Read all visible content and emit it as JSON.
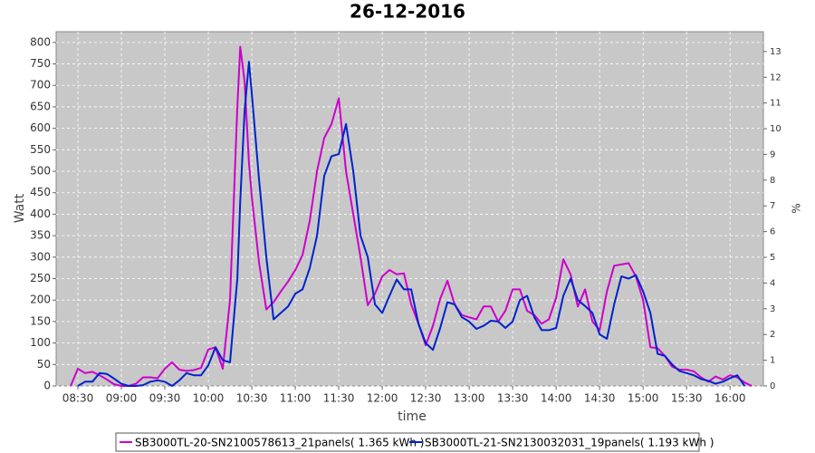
{
  "chart_data": {
    "type": "line",
    "title": "26-12-2016",
    "x_label": "time",
    "y_label": "Watt",
    "y2_label": "%",
    "x": [
      505,
      510,
      515,
      520,
      525,
      530,
      535,
      540,
      545,
      550,
      555,
      560,
      565,
      570,
      575,
      580,
      585,
      590,
      595,
      600,
      605,
      610,
      615,
      620,
      622,
      625,
      628,
      630,
      635,
      640,
      645,
      650,
      655,
      660,
      665,
      670,
      675,
      680,
      685,
      690,
      695,
      700,
      705,
      710,
      715,
      720,
      725,
      730,
      735,
      740,
      745,
      750,
      755,
      760,
      765,
      770,
      775,
      780,
      785,
      790,
      795,
      800,
      805,
      810,
      815,
      820,
      825,
      830,
      835,
      840,
      845,
      850,
      855,
      860,
      865,
      870,
      875,
      880,
      885,
      890,
      895,
      900,
      905,
      910,
      915,
      920,
      925,
      930,
      935,
      940,
      945,
      950,
      955,
      960,
      965,
      970,
      975
    ],
    "series": [
      {
        "name": "SB3000TL-20-SN2100578613_21panels( 1.365 kWh )",
        "color": "#cc00cc",
        "values": [
          0,
          40,
          30,
          33,
          25,
          15,
          4,
          0,
          0,
          5,
          20,
          20,
          18,
          40,
          55,
          38,
          35,
          37,
          42,
          85,
          90,
          40,
          200,
          650,
          790,
          710,
          520,
          440,
          287,
          178,
          195,
          220,
          243,
          270,
          305,
          385,
          500,
          578,
          610,
          670,
          500,
          400,
          300,
          188,
          215,
          255,
          270,
          260,
          262,
          190,
          145,
          95,
          140,
          203,
          245,
          190,
          165,
          160,
          155,
          185,
          185,
          150,
          175,
          225,
          225,
          175,
          165,
          145,
          155,
          205,
          295,
          260,
          185,
          225,
          150,
          130,
          220,
          280,
          283,
          286,
          255,
          200,
          90,
          88,
          70,
          45,
          38,
          38,
          34,
          20,
          10,
          22,
          15,
          25,
          20,
          8,
          0
        ]
      },
      {
        "name": "SB3000TL-21-SN2130032031_19panels( 1.193 kWh )",
        "color": "#0022cc",
        "values": [
          null,
          0,
          10,
          10,
          30,
          28,
          17,
          5,
          0,
          0,
          2,
          10,
          13,
          10,
          0,
          13,
          30,
          25,
          25,
          48,
          90,
          60,
          55,
          250,
          430,
          640,
          755,
          680,
          480,
          300,
          155,
          170,
          185,
          215,
          225,
          275,
          350,
          490,
          535,
          540,
          610,
          500,
          350,
          300,
          190,
          170,
          210,
          248,
          225,
          225,
          145,
          100,
          84,
          135,
          195,
          190,
          160,
          150,
          133,
          140,
          152,
          150,
          135,
          150,
          200,
          210,
          160,
          130,
          130,
          135,
          210,
          250,
          200,
          186,
          170,
          120,
          110,
          190,
          255,
          250,
          258,
          220,
          170,
          75,
          70,
          50,
          35,
          30,
          25,
          16,
          12,
          5,
          10,
          18,
          25,
          0,
          null
        ]
      }
    ],
    "xlim": [
      495,
      983
    ],
    "xticks": [
      {
        "value": 510,
        "label": "08:30"
      },
      {
        "value": 540,
        "label": "09:00"
      },
      {
        "value": 570,
        "label": "09:30"
      },
      {
        "value": 600,
        "label": "10:00"
      },
      {
        "value": 630,
        "label": "10:30"
      },
      {
        "value": 660,
        "label": "11:00"
      },
      {
        "value": 690,
        "label": "11:30"
      },
      {
        "value": 720,
        "label": "12:00"
      },
      {
        "value": 750,
        "label": "12:30"
      },
      {
        "value": 780,
        "label": "13:00"
      },
      {
        "value": 810,
        "label": "13:30"
      },
      {
        "value": 840,
        "label": "14:00"
      },
      {
        "value": 870,
        "label": "14:30"
      },
      {
        "value": 900,
        "label": "15:00"
      },
      {
        "value": 930,
        "label": "15:30"
      },
      {
        "value": 960,
        "label": "16:00"
      }
    ],
    "ylim": [
      0,
      825
    ],
    "yticks": [
      0,
      50,
      100,
      150,
      200,
      250,
      300,
      350,
      400,
      450,
      500,
      550,
      600,
      650,
      700,
      750,
      800
    ],
    "y2lim": [
      0,
      13.77
    ],
    "y2ticks": [
      0,
      1,
      2,
      3,
      4,
      5,
      6,
      7,
      8,
      9,
      10,
      11,
      12,
      13
    ],
    "grid": true
  }
}
